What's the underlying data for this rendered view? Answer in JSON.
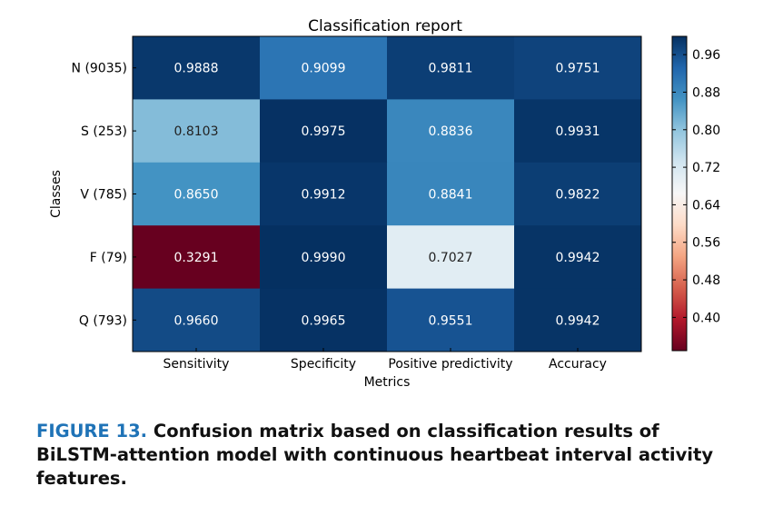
{
  "chart_data": {
    "type": "heatmap",
    "title": "Classification report",
    "xlabel": "Metrics",
    "ylabel": "Classes",
    "columns": [
      "Sensitivity",
      "Specificity",
      "Positive predictivity",
      "Accuracy"
    ],
    "rows": [
      "N (9035)",
      "S (253)",
      "V (785)",
      "F (79)",
      "Q (793)"
    ],
    "values": [
      [
        0.9888,
        0.9099,
        0.9811,
        0.9751
      ],
      [
        0.8103,
        0.9975,
        0.8836,
        0.9931
      ],
      [
        0.865,
        0.9912,
        0.8841,
        0.9822
      ],
      [
        0.3291,
        0.999,
        0.7027,
        0.9942
      ],
      [
        0.966,
        0.9965,
        0.9551,
        0.9942
      ]
    ],
    "value_labels": [
      [
        "0.9888",
        "0.9099",
        "0.9811",
        "0.9751"
      ],
      [
        "0.8103",
        "0.9975",
        "0.8836",
        "0.9931"
      ],
      [
        "0.8650",
        "0.9912",
        "0.8841",
        "0.9822"
      ],
      [
        "0.3291",
        "0.9990",
        "0.7027",
        "0.9942"
      ],
      [
        "0.9660",
        "0.9965",
        "0.9551",
        "0.9942"
      ]
    ],
    "colormap": "RdBu",
    "color_range": [
      0.3291,
      0.999
    ],
    "colorbar_ticks": [
      0.96,
      0.88,
      0.8,
      0.72,
      0.64,
      0.56,
      0.48,
      0.4
    ],
    "colorbar_tick_labels": [
      "0.96",
      "0.88",
      "0.80",
      "0.72",
      "0.64",
      "0.56",
      "0.48",
      "0.40"
    ],
    "colors": {
      "low": "#67001f",
      "mid": "#f7f7f7",
      "high": "#053061"
    }
  },
  "caption": {
    "label": "FIGURE 13.",
    "text": "Confusion matrix based on classification results of BiLSTM-attention model with continuous heartbeat interval activity features."
  }
}
